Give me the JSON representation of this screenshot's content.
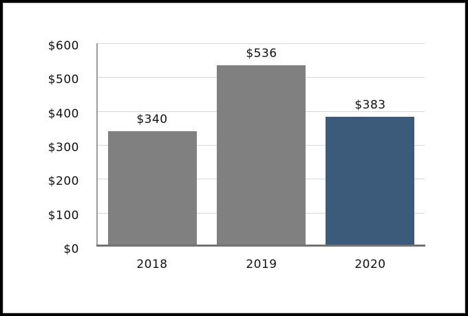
{
  "chart_data": {
    "type": "bar",
    "title": "",
    "xlabel": "",
    "ylabel": "",
    "categories": [
      "2018",
      "2019",
      "2020"
    ],
    "values": [
      340,
      536,
      383
    ],
    "data_labels": [
      "$340",
      "$536",
      "$383"
    ],
    "bar_colors": [
      "#808080",
      "#808080",
      "#3C5A7A"
    ],
    "ylim": [
      0,
      600
    ],
    "y_tick_interval": 100,
    "y_tick_labels": [
      "$0",
      "$100",
      "$200",
      "$300",
      "$400",
      "$500",
      "$600"
    ],
    "grid": "horizontal",
    "legend": "none",
    "colors": {
      "background": "#FFFFFF",
      "frame_border": "#000000",
      "gridline": "#D7D7D7",
      "y_axis_line": "#9A9A9A",
      "x_axis_line": "#737373",
      "text": "#111111",
      "bar_gray": "#808080",
      "bar_blue": "#3C5A7A"
    }
  }
}
